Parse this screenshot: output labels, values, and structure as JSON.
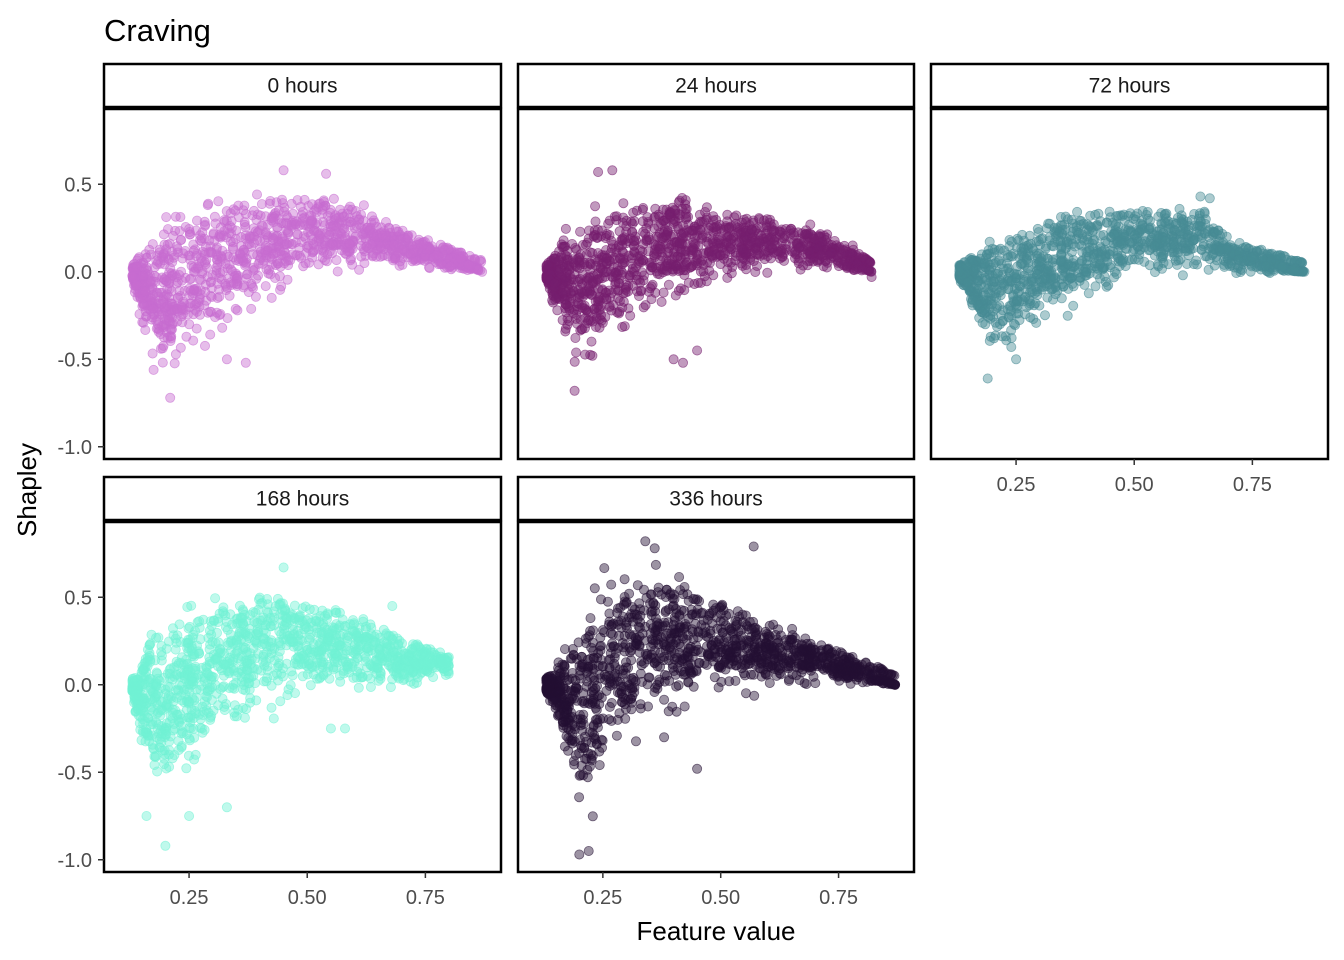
{
  "chart_data": {
    "type": "scatter",
    "title": "Craving",
    "xlabel": "Feature value",
    "ylabel": "Shapley",
    "xlim": [
      0.07,
      0.91
    ],
    "ylim": [
      -1.07,
      0.93
    ],
    "x_ticks": [
      "0.25",
      "0.50",
      "0.75"
    ],
    "x_tick_values": [
      0.25,
      0.5,
      0.75
    ],
    "y_ticks": [
      "-1.0",
      "-0.5",
      "0.0",
      "0.5"
    ],
    "y_tick_values": [
      -1.0,
      -0.5,
      0.0,
      0.5
    ],
    "grid": false,
    "legend": "none",
    "facets": [
      {
        "label": "0 hours",
        "color": "#C76DD1",
        "shape": {
          "x_min": 0.13,
          "x_max": 0.87,
          "upper_envelope": [
            [
              0.13,
              0.0
            ],
            [
              0.16,
              0.3
            ],
            [
              0.2,
              0.45
            ],
            [
              0.3,
              0.52
            ],
            [
              0.4,
              0.55
            ],
            [
              0.5,
              0.52
            ],
            [
              0.6,
              0.45
            ],
            [
              0.7,
              0.25
            ],
            [
              0.8,
              0.12
            ],
            [
              0.87,
              0.02
            ]
          ],
          "lower_envelope": [
            [
              0.13,
              -0.05
            ],
            [
              0.15,
              -0.4
            ],
            [
              0.17,
              -0.65
            ],
            [
              0.2,
              -0.72
            ],
            [
              0.25,
              -0.6
            ],
            [
              0.3,
              -0.45
            ],
            [
              0.4,
              -0.25
            ],
            [
              0.5,
              -0.1
            ],
            [
              0.6,
              -0.05
            ],
            [
              0.7,
              0.0
            ],
            [
              0.8,
              0.0
            ],
            [
              0.87,
              0.0
            ]
          ],
          "outliers": [
            [
              0.87,
              0.0
            ],
            [
              0.45,
              0.58
            ],
            [
              0.54,
              0.56
            ],
            [
              0.33,
              -0.5
            ],
            [
              0.37,
              -0.52
            ],
            [
              0.32,
              -0.32
            ],
            [
              0.21,
              -0.72
            ],
            [
              0.62,
              0.38
            ],
            [
              0.69,
              0.23
            ]
          ]
        }
      },
      {
        "label": "24 hours",
        "color": "#761E6E",
        "shape": {
          "x_min": 0.13,
          "x_max": 0.82,
          "upper_envelope": [
            [
              0.13,
              0.0
            ],
            [
              0.16,
              0.25
            ],
            [
              0.2,
              0.4
            ],
            [
              0.28,
              0.52
            ],
            [
              0.35,
              0.55
            ],
            [
              0.45,
              0.47
            ],
            [
              0.55,
              0.4
            ],
            [
              0.65,
              0.3
            ],
            [
              0.75,
              0.2
            ],
            [
              0.82,
              0.0
            ]
          ],
          "lower_envelope": [
            [
              0.13,
              -0.05
            ],
            [
              0.15,
              -0.3
            ],
            [
              0.18,
              -0.55
            ],
            [
              0.2,
              -0.68
            ],
            [
              0.25,
              -0.55
            ],
            [
              0.3,
              -0.4
            ],
            [
              0.4,
              -0.25
            ],
            [
              0.5,
              -0.12
            ],
            [
              0.6,
              -0.05
            ],
            [
              0.7,
              -0.02
            ],
            [
              0.82,
              0.0
            ]
          ],
          "outliers": [
            [
              0.24,
              0.57
            ],
            [
              0.27,
              0.58
            ],
            [
              0.19,
              -0.68
            ],
            [
              0.4,
              -0.5
            ],
            [
              0.42,
              -0.52
            ],
            [
              0.45,
              -0.45
            ],
            [
              0.82,
              -0.03
            ],
            [
              0.78,
              0.15
            ],
            [
              0.69,
              0.27
            ]
          ]
        }
      },
      {
        "label": "72 hours",
        "color": "#478B94",
        "shape": {
          "x_min": 0.13,
          "x_max": 0.86,
          "upper_envelope": [
            [
              0.13,
              0.0
            ],
            [
              0.16,
              0.15
            ],
            [
              0.2,
              0.3
            ],
            [
              0.3,
              0.42
            ],
            [
              0.4,
              0.46
            ],
            [
              0.5,
              0.44
            ],
            [
              0.6,
              0.38
            ],
            [
              0.65,
              0.42
            ],
            [
              0.7,
              0.2
            ],
            [
              0.8,
              0.08
            ],
            [
              0.86,
              0.0
            ]
          ],
          "lower_envelope": [
            [
              0.13,
              -0.05
            ],
            [
              0.15,
              -0.2
            ],
            [
              0.18,
              -0.5
            ],
            [
              0.2,
              -0.6
            ],
            [
              0.25,
              -0.52
            ],
            [
              0.3,
              -0.42
            ],
            [
              0.4,
              -0.25
            ],
            [
              0.5,
              -0.1
            ],
            [
              0.6,
              -0.05
            ],
            [
              0.7,
              -0.05
            ],
            [
              0.86,
              0.0
            ]
          ],
          "outliers": [
            [
              0.13,
              0.0
            ],
            [
              0.86,
              0.0
            ],
            [
              0.84,
              0.02
            ],
            [
              0.19,
              -0.61
            ],
            [
              0.24,
              -0.43
            ],
            [
              0.25,
              -0.5
            ],
            [
              0.64,
              0.43
            ],
            [
              0.66,
              0.42
            ]
          ]
        }
      },
      {
        "label": "168 hours",
        "color": "#71F2D4",
        "shape": {
          "x_min": 0.13,
          "x_max": 0.8,
          "upper_envelope": [
            [
              0.13,
              0.0
            ],
            [
              0.15,
              0.3
            ],
            [
              0.17,
              0.5
            ],
            [
              0.22,
              0.62
            ],
            [
              0.3,
              0.65
            ],
            [
              0.4,
              0.7
            ],
            [
              0.5,
              0.6
            ],
            [
              0.6,
              0.5
            ],
            [
              0.7,
              0.3
            ],
            [
              0.8,
              0.15
            ]
          ],
          "lower_envelope": [
            [
              0.13,
              -0.05
            ],
            [
              0.14,
              -0.3
            ],
            [
              0.16,
              -0.6
            ],
            [
              0.18,
              -0.8
            ],
            [
              0.2,
              -0.92
            ],
            [
              0.25,
              -0.75
            ],
            [
              0.3,
              -0.55
            ],
            [
              0.4,
              -0.3
            ],
            [
              0.5,
              -0.15
            ],
            [
              0.6,
              -0.1
            ],
            [
              0.7,
              -0.05
            ],
            [
              0.8,
              0.05
            ]
          ],
          "outliers": [
            [
              0.2,
              -0.92
            ],
            [
              0.16,
              -0.75
            ],
            [
              0.25,
              -0.75
            ],
            [
              0.33,
              -0.7
            ],
            [
              0.45,
              0.67
            ],
            [
              0.58,
              -0.25
            ],
            [
              0.55,
              -0.25
            ],
            [
              0.68,
              0.45
            ],
            [
              0.72,
              0.2
            ]
          ]
        }
      },
      {
        "label": "336 hours",
        "color": "#241033",
        "shape": {
          "x_min": 0.13,
          "x_max": 0.87,
          "upper_envelope": [
            [
              0.13,
              0.0
            ],
            [
              0.17,
              0.3
            ],
            [
              0.2,
              0.6
            ],
            [
              0.25,
              0.72
            ],
            [
              0.3,
              0.75
            ],
            [
              0.35,
              0.82
            ],
            [
              0.4,
              0.75
            ],
            [
              0.45,
              0.7
            ],
            [
              0.55,
              0.5
            ],
            [
              0.65,
              0.35
            ],
            [
              0.75,
              0.2
            ],
            [
              0.82,
              0.1
            ],
            [
              0.87,
              0.0
            ]
          ],
          "lower_envelope": [
            [
              0.13,
              -0.05
            ],
            [
              0.15,
              -0.2
            ],
            [
              0.17,
              -0.5
            ],
            [
              0.19,
              -0.8
            ],
            [
              0.21,
              -1.0
            ],
            [
              0.24,
              -0.8
            ],
            [
              0.28,
              -0.55
            ],
            [
              0.35,
              -0.35
            ],
            [
              0.45,
              -0.2
            ],
            [
              0.55,
              -0.1
            ],
            [
              0.65,
              -0.05
            ],
            [
              0.75,
              -0.02
            ],
            [
              0.87,
              0.0
            ]
          ],
          "outliers": [
            [
              0.2,
              -0.97
            ],
            [
              0.22,
              -0.95
            ],
            [
              0.87,
              0.0
            ],
            [
              0.57,
              0.79
            ],
            [
              0.34,
              0.82
            ],
            [
              0.36,
              0.78
            ],
            [
              0.45,
              -0.48
            ],
            [
              0.38,
              -0.3
            ],
            [
              0.7,
              0.2
            ]
          ]
        }
      }
    ]
  }
}
